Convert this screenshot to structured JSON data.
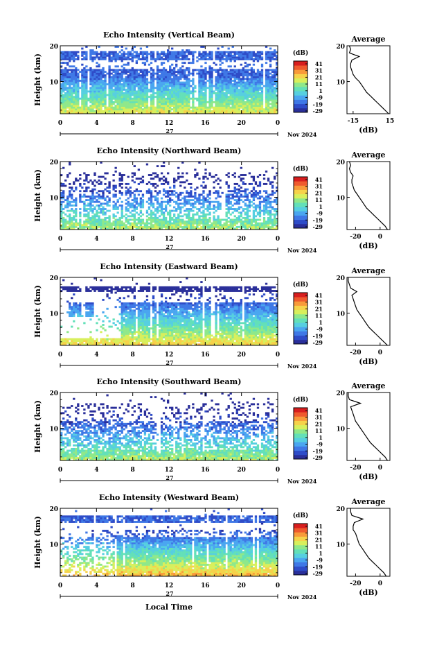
{
  "figure": {
    "xlabel_bottom": "Local Time"
  },
  "colorbar": {
    "unit_label": "(dB)",
    "tick_labels": [
      "41",
      "31",
      "21",
      "11",
      "1",
      "-9",
      "-19",
      "-29"
    ],
    "colors": [
      "#2a2f9a",
      "#2e4cc8",
      "#3f78e6",
      "#4aa6f0",
      "#56cfe0",
      "#63e0b8",
      "#8fe88a",
      "#d8ef5c",
      "#f6d24a",
      "#f89a3a",
      "#ef5a2e",
      "#d81e1e"
    ]
  },
  "chart_data": [
    {
      "type": "heatmap",
      "title": "Echo Intensity (Vertical Beam)",
      "ylabel": "Height (km)",
      "x_ticks": [
        "0",
        "4",
        "8",
        "12",
        "16",
        "20",
        "0"
      ],
      "xlim": [
        0,
        24
      ],
      "y_ticks": [
        "20",
        "10"
      ],
      "ylim": [
        1,
        20
      ],
      "date_day": "27",
      "date_month": "Nov 2024",
      "colorbar": {
        "label": "(dB)",
        "range": [
          -29,
          41
        ]
      },
      "profile": {
        "title": "Average",
        "xlabel": "(dB)",
        "x_ticks": [
          "-15",
          "15"
        ],
        "xlim": [
          -20,
          15
        ],
        "y_ticks": [
          "20",
          "10"
        ],
        "height": [
          1,
          2,
          3,
          4,
          5,
          6,
          7,
          8,
          9,
          10,
          11,
          12,
          13,
          14,
          15,
          16,
          17,
          18,
          19,
          20
        ],
        "value": [
          14,
          11,
          8,
          5,
          2,
          -1,
          -4,
          -6,
          -8,
          -10,
          -13,
          -15,
          -16,
          -17,
          -17,
          -16,
          -10,
          -18,
          -17,
          -18
        ]
      }
    },
    {
      "type": "heatmap",
      "title": "Echo Intensity (Northward Beam)",
      "ylabel": "Height (km)",
      "x_ticks": [
        "0",
        "4",
        "8",
        "12",
        "16",
        "20",
        "0"
      ],
      "xlim": [
        0,
        24
      ],
      "y_ticks": [
        "20",
        "10"
      ],
      "ylim": [
        1,
        20
      ],
      "date_day": "27",
      "date_month": "Nov 2024",
      "colorbar": {
        "label": "(dB)",
        "range": [
          -29,
          41
        ]
      },
      "profile": {
        "title": "Average",
        "xlabel": "(dB)",
        "x_ticks": [
          "-20",
          "0"
        ],
        "xlim": [
          -27,
          8
        ],
        "y_ticks": [
          "20",
          "10"
        ],
        "height": [
          1,
          2,
          3,
          4,
          5,
          6,
          7,
          8,
          9,
          10,
          11,
          12,
          13,
          14,
          15,
          16,
          17,
          18,
          19,
          20
        ],
        "value": [
          6,
          4,
          1,
          -2,
          -5,
          -8,
          -11,
          -13,
          -15,
          -17,
          -19,
          -21,
          -22,
          -23,
          -23,
          -22,
          -24,
          -25,
          -24,
          -25
        ]
      }
    },
    {
      "type": "heatmap",
      "title": "Echo Intensity (Eastward Beam)",
      "ylabel": "Height (km)",
      "x_ticks": [
        "0",
        "4",
        "8",
        "12",
        "16",
        "20",
        "0"
      ],
      "xlim": [
        0,
        24
      ],
      "y_ticks": [
        "20",
        "10"
      ],
      "ylim": [
        1,
        20
      ],
      "date_day": "27",
      "date_month": "Nov 2024",
      "colorbar": {
        "label": "(dB)",
        "range": [
          -29,
          41
        ]
      },
      "profile": {
        "title": "Average",
        "xlabel": "(dB)",
        "x_ticks": [
          "-20",
          "0"
        ],
        "xlim": [
          -27,
          8
        ],
        "y_ticks": [
          "20",
          "10"
        ],
        "height": [
          1,
          2,
          3,
          4,
          5,
          6,
          7,
          8,
          9,
          10,
          11,
          12,
          13,
          14,
          15,
          16,
          17,
          18,
          19,
          20
        ],
        "value": [
          6,
          3,
          0,
          -3,
          -6,
          -9,
          -11,
          -13,
          -15,
          -17,
          -19,
          -20,
          -21,
          -22,
          -23,
          -19,
          -24,
          -25,
          -26,
          -26
        ]
      }
    },
    {
      "type": "heatmap",
      "title": "Echo Intensity (Southward Beam)",
      "ylabel": "Height (km)",
      "x_ticks": [
        "0",
        "4",
        "8",
        "12",
        "16",
        "20",
        "0"
      ],
      "xlim": [
        0,
        24
      ],
      "y_ticks": [
        "20",
        "10"
      ],
      "ylim": [
        1,
        20
      ],
      "date_day": "27",
      "date_month": "Nov 2024",
      "colorbar": {
        "label": "(dB)",
        "range": [
          -29,
          41
        ]
      },
      "profile": {
        "title": "Average",
        "xlabel": "(dB)",
        "x_ticks": [
          "-20",
          "0"
        ],
        "xlim": [
          -27,
          8
        ],
        "y_ticks": [
          "20",
          "10"
        ],
        "height": [
          1,
          2,
          3,
          4,
          5,
          6,
          7,
          8,
          9,
          10,
          11,
          12,
          13,
          14,
          15,
          16,
          17,
          18,
          19,
          20
        ],
        "value": [
          6,
          4,
          1,
          -2,
          -5,
          -8,
          -10,
          -12,
          -14,
          -16,
          -18,
          -20,
          -21,
          -22,
          -23,
          -24,
          -16,
          -25,
          -26,
          -26
        ]
      }
    },
    {
      "type": "heatmap",
      "title": "Echo Intensity (Westward Beam)",
      "ylabel": "Height (km)",
      "x_ticks": [
        "0",
        "4",
        "8",
        "12",
        "16",
        "20",
        "0"
      ],
      "xlim": [
        0,
        24
      ],
      "y_ticks": [
        "20",
        "10"
      ],
      "ylim": [
        1,
        20
      ],
      "date_day": "27",
      "date_month": "Nov 2024",
      "colorbar": {
        "label": "(dB)",
        "range": [
          -29,
          41
        ]
      },
      "profile": {
        "title": "Average",
        "xlabel": "(dB)",
        "x_ticks": [
          "-20",
          "0"
        ],
        "xlim": [
          -27,
          8
        ],
        "y_ticks": [
          "20",
          "10"
        ],
        "height": [
          1,
          2,
          3,
          4,
          5,
          6,
          7,
          8,
          9,
          10,
          11,
          12,
          13,
          14,
          15,
          16,
          17,
          18,
          19,
          20
        ],
        "value": [
          5,
          3,
          0,
          -3,
          -6,
          -9,
          -11,
          -13,
          -15,
          -17,
          -18,
          -19,
          -20,
          -22,
          -22,
          -21,
          -14,
          -23,
          -24,
          -24
        ]
      }
    }
  ]
}
